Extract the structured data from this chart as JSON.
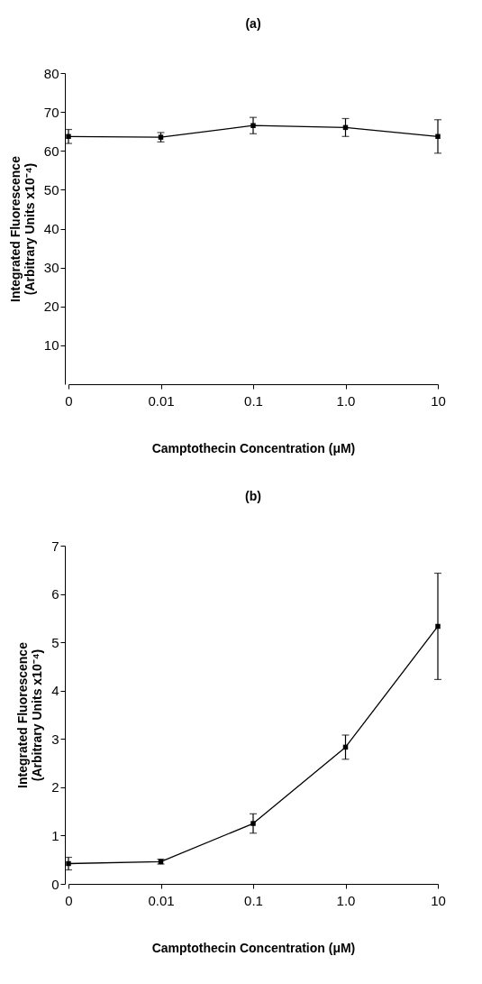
{
  "chart_data": [
    {
      "type": "line",
      "title": "(a)",
      "xlabel": "Camptothecin Concentration (μM)",
      "ylabel": "Integrated Fluorescence\n(Arbitrary Units x10⁻⁴)",
      "categories": [
        "0",
        "0.01",
        "0.1",
        "1.0",
        "10"
      ],
      "values": [
        63.7,
        63.5,
        66.5,
        66.0,
        63.7
      ],
      "errors": [
        1.8,
        1.2,
        2.1,
        2.3,
        4.3
      ],
      "color": "#000000",
      "marker": "square",
      "ylim": [
        0,
        80
      ],
      "yticks": [
        10,
        20,
        30,
        40,
        50,
        60,
        70,
        80
      ],
      "grid": false,
      "legend": false
    },
    {
      "type": "line",
      "title": "(b)",
      "xlabel": "Camptothecin Concentration (μM)",
      "ylabel": "Integrated Fluorescence\n(Arbitrary Units x10⁻⁴)",
      "categories": [
        "0",
        "0.01",
        "0.1",
        "1.0",
        "10"
      ],
      "values": [
        0.42,
        0.46,
        1.25,
        2.83,
        5.33
      ],
      "errors": [
        0.13,
        0.05,
        0.2,
        0.25,
        1.1
      ],
      "color": "#000000",
      "marker": "square",
      "ylim": [
        0,
        7
      ],
      "yticks": [
        0,
        1,
        2,
        3,
        4,
        5,
        6,
        7
      ],
      "grid": false,
      "legend": false
    }
  ]
}
